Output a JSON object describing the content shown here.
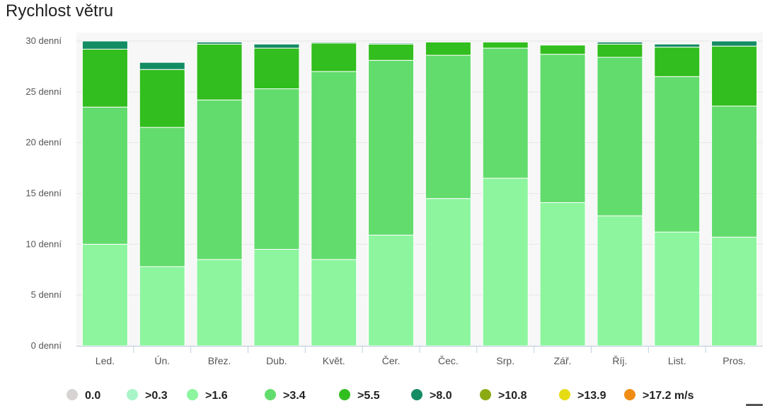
{
  "title": "Rychlost větru",
  "colors": {
    "plot_bg": "#f7f7f7",
    "grid": "#e6e6e6",
    "axis_line": "#c0d0e0"
  },
  "chart_data": {
    "type": "bar",
    "stacked": true,
    "title": "Rychlost větru",
    "categories": [
      "Led.",
      "Ún.",
      "Břez.",
      "Dub.",
      "Květ.",
      "Čer.",
      "Čec.",
      "Srp.",
      "Zář.",
      "Říj.",
      "List.",
      "Pros."
    ],
    "ylim": [
      0,
      30
    ],
    "yticks": [
      0,
      5,
      10,
      15,
      20,
      25,
      30
    ],
    "ytick_labels": [
      "0 denní",
      "5 denní",
      "10 denní",
      "15 denní",
      "20 denní",
      "25 denní",
      "30 denní"
    ],
    "grid": true,
    "legend_position": "bottom",
    "series": [
      {
        "name": "0.0",
        "color": "#d8d3d3",
        "values": [
          0,
          0,
          0,
          0,
          0,
          0,
          0,
          0,
          0,
          0,
          0,
          0
        ]
      },
      {
        "name": ">0.3",
        "color": "#a8f5c8",
        "values": [
          0,
          0,
          0,
          0,
          0,
          0,
          0,
          0,
          0,
          0,
          0,
          0
        ]
      },
      {
        "name": ">1.6",
        "color": "#8cf59e",
        "values": [
          10,
          7.8,
          8.5,
          9.5,
          8.5,
          10.9,
          14.5,
          16.5,
          14.1,
          12.8,
          11.2,
          10.7
        ]
      },
      {
        "name": ">3.4",
        "color": "#62dc6c",
        "values": [
          13.5,
          13.7,
          15.7,
          15.8,
          18.5,
          17.2,
          14.1,
          12.8,
          14.6,
          15.6,
          15.3,
          12.9
        ]
      },
      {
        "name": ">5.5",
        "color": "#32be1e",
        "values": [
          5.7,
          5.7,
          5.5,
          4.0,
          2.8,
          1.6,
          1.3,
          0.6,
          0.9,
          1.3,
          2.9,
          5.9
        ]
      },
      {
        "name": ">8.0",
        "color": "#148c64",
        "values": [
          0.8,
          0.7,
          0.2,
          0.4,
          0.1,
          0.1,
          0,
          0,
          0,
          0.2,
          0.3,
          0.5
        ]
      },
      {
        "name": ">10.8",
        "color": "#8caa14",
        "values": [
          0,
          0,
          0,
          0,
          0,
          0,
          0,
          0,
          0,
          0,
          0,
          0
        ]
      },
      {
        "name": ">13.9",
        "color": "#e6dc14",
        "values": [
          0,
          0,
          0,
          0,
          0,
          0,
          0,
          0,
          0,
          0,
          0,
          0
        ]
      },
      {
        "name": ">17.2 m/s",
        "color": "#f08c14",
        "values": [
          0,
          0,
          0,
          0,
          0,
          0,
          0,
          0,
          0,
          0,
          0,
          0
        ]
      }
    ]
  }
}
